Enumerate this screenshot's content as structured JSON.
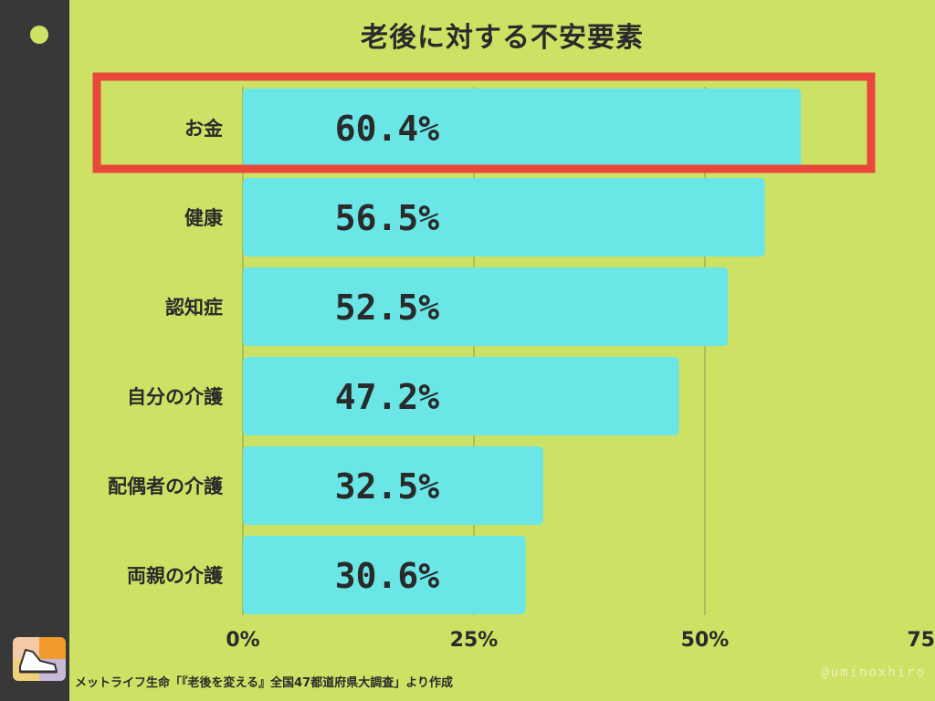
{
  "chart_data": {
    "type": "bar",
    "orientation": "horizontal",
    "title": "老後に対する不安要素",
    "categories": [
      "お金",
      "健康",
      "認知症",
      "自分の介護",
      "配偶者の介護",
      "両親の介護"
    ],
    "values": [
      60.4,
      56.5,
      52.5,
      47.2,
      32.5,
      30.6
    ],
    "value_labels": [
      "60.4%",
      "56.5%",
      "52.5%",
      "47.2%",
      "32.5%",
      "30.6%"
    ],
    "x_ticks": [
      {
        "value": 0,
        "label": "0%"
      },
      {
        "value": 25,
        "label": "25%"
      },
      {
        "value": 50,
        "label": "50%"
      },
      {
        "value": 75,
        "label": "75"
      }
    ],
    "xlim": [
      0,
      75
    ],
    "grid": true,
    "highlight_index": 0
  },
  "footer": {
    "source": "メットライフ生命「『老後を変える』全国47都道府県大調査」より作成",
    "handle": "@uminoxhiro"
  },
  "colors": {
    "background": "#cde265",
    "bar": "#6ae6e6",
    "highlight": "#e8473a",
    "strip": "#383838",
    "text": "#2a2a2a"
  }
}
